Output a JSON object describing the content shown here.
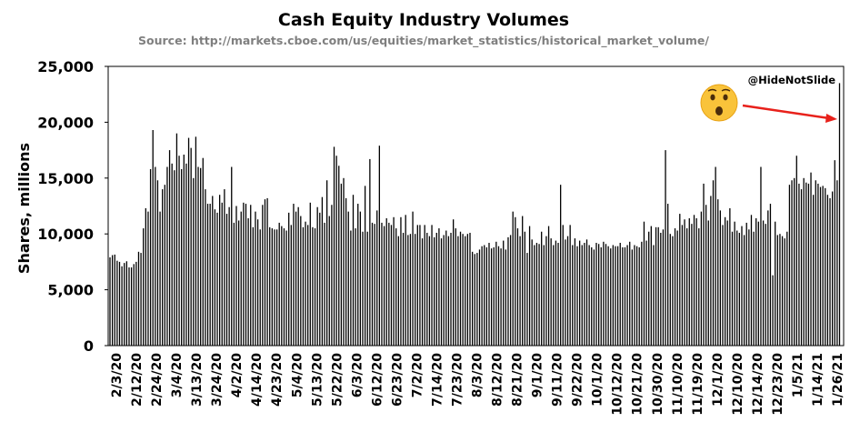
{
  "chart_data": {
    "type": "bar",
    "title": "Cash Equity Industry Volumes",
    "subtitle": "Source: http://markets.cboe.com/us/equities/market_statistics/historical_market_volume/",
    "ylabel": "Shares, millions",
    "xlabel": "",
    "ylim": [
      0,
      25000
    ],
    "yticks": [
      0,
      5000,
      10000,
      15000,
      20000,
      25000
    ],
    "ytick_labels": [
      "0",
      "5,000",
      "10,000",
      "15,000",
      "20,000",
      "25,000"
    ],
    "xtick_labels": [
      "2/3/20",
      "2/12/20",
      "2/24/20",
      "3/4/20",
      "3/13/20",
      "3/24/20",
      "4/2/20",
      "4/14/20",
      "4/23/20",
      "5/4/20",
      "5/13/20",
      "5/22/20",
      "6/3/20",
      "6/12/20",
      "6/23/20",
      "7/2/20",
      "7/14/20",
      "7/23/20",
      "8/3/20",
      "8/12/20",
      "8/21/20",
      "9/1/20",
      "9/11/20",
      "9/22/20",
      "10/1/20",
      "10/12/20",
      "10/21/20",
      "10/30/20",
      "11/10/20",
      "11/19/20",
      "12/1/20",
      "12/10/20",
      "12/14/20",
      "12/23/20",
      "1/5/21",
      "1/14/21",
      "1/26/21"
    ],
    "grid": false,
    "bar_color": "#000000",
    "values": [
      7900,
      8100,
      8150,
      7600,
      7500,
      7100,
      7400,
      7550,
      7000,
      7000,
      7300,
      7500,
      8400,
      8300,
      10500,
      12300,
      12000,
      15800,
      19300,
      16000,
      14800,
      12000,
      14000,
      14400,
      16000,
      17500,
      16300,
      15700,
      19000,
      17000,
      15800,
      17100,
      16300,
      18600,
      17700,
      15000,
      18700,
      16000,
      15900,
      16800,
      14000,
      12700,
      12700,
      13400,
      12200,
      11900,
      13500,
      12800,
      14000,
      11800,
      12400,
      16000,
      11000,
      12500,
      11200,
      12000,
      12800,
      12700,
      11400,
      12600,
      10600,
      12000,
      11300,
      10400,
      12600,
      13100,
      13200,
      10600,
      10500,
      10400,
      10400,
      11000,
      10700,
      10500,
      10300,
      11900,
      10800,
      12700,
      12000,
      12400,
      11600,
      10600,
      11100,
      10800,
      12800,
      10600,
      10500,
      12400,
      11900,
      13300,
      11000,
      14800,
      11600,
      12600,
      17800,
      17000,
      16100,
      14500,
      15000,
      13200,
      12000,
      10300,
      13500,
      10500,
      12700,
      12000,
      10200,
      14300,
      10200,
      16700,
      11000,
      10900,
      12100,
      17900,
      11000,
      10700,
      11400,
      11000,
      10800,
      11500,
      10500,
      9800,
      11500,
      10100,
      11700,
      9900,
      10000,
      12000,
      10000,
      10800,
      10800,
      9600,
      10800,
      10100,
      9800,
      10800,
      9700,
      10100,
      10500,
      9600,
      9900,
      10300,
      9800,
      10100,
      11300,
      10500,
      9800,
      10200,
      10000,
      9800,
      10000,
      10100,
      8400,
      8200,
      8300,
      8600,
      8900,
      9000,
      8800,
      9200,
      8700,
      8800,
      9300,
      8900,
      8700,
      9400,
      8600,
      9700,
      9900,
      12000,
      11500,
      10500,
      9800,
      11600,
      10200,
      8300,
      10700,
      9500,
      9000,
      9200,
      9100,
      10200,
      9000,
      9800,
      10700,
      9600,
      9000,
      9400,
      9200,
      14400,
      10800,
      9500,
      9800,
      10800,
      9000,
      9600,
      8900,
      9400,
      9000,
      9200,
      9500,
      9000,
      8800,
      8600,
      9200,
      9100,
      8800,
      9300,
      9100,
      8900,
      8700,
      9000,
      8900,
      8900,
      9200,
      8800,
      8800,
      9000,
      9300,
      8600,
      9000,
      8900,
      8800,
      9300,
      11100,
      9400,
      10200,
      10700,
      9000,
      10600,
      10600,
      10100,
      10400,
      17500,
      12700,
      10000,
      9800,
      10500,
      10300,
      11800,
      10800,
      11300,
      10500,
      11400,
      10900,
      11700,
      11400,
      10500,
      12000,
      14500,
      12600,
      11200,
      13400,
      14800,
      16000,
      13100,
      12100,
      10800,
      11500,
      11200,
      12300,
      10200,
      11100,
      10300,
      10100,
      10700,
      9900,
      11000,
      10400,
      11700,
      10200,
      11400,
      11100,
      16000,
      11200,
      10900,
      12100,
      12700,
      6300,
      11100,
      9900,
      10000,
      9800,
      9600,
      10200,
      14400,
      14800,
      15000,
      17000,
      14500,
      14000,
      15000,
      14600,
      14500,
      15500,
      13500,
      14800,
      14500,
      14200,
      14300,
      14100,
      13500,
      13200,
      13800,
      16600,
      14800,
      23500
    ],
    "annotations": {
      "credit": "@HideNotSlide",
      "emoji": "😮",
      "arrow_color": "#e8211b"
    }
  }
}
